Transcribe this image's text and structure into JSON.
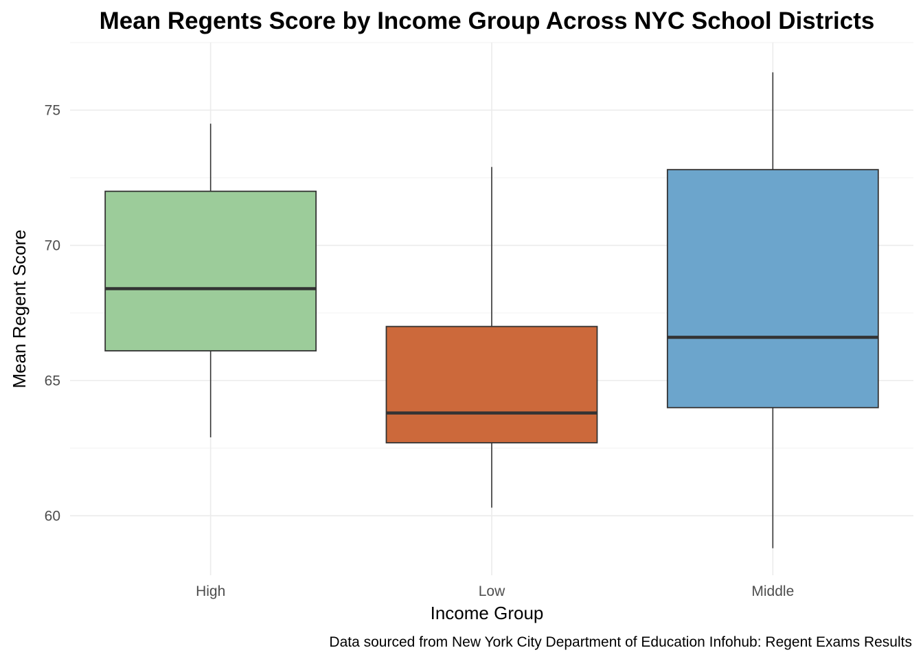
{
  "chart_data": {
    "type": "box",
    "title": "Mean Regents Score by Income Group Across NYC School Districts",
    "xlabel": "Income Group",
    "ylabel": "Mean Regent Score",
    "caption": "Data sourced from New York City Department of Education Infohub: Regent Exams Results",
    "ylim": [
      57.8,
      77.5
    ],
    "yticks": [
      60,
      65,
      70,
      75
    ],
    "ytick_labels": [
      "60",
      "65",
      "70",
      "75"
    ],
    "grid": true,
    "legend": "none",
    "categories": [
      "High",
      "Low",
      "Middle"
    ],
    "boxes": [
      {
        "category": "High",
        "whisker_low": 62.9,
        "q1": 66.1,
        "median": 68.4,
        "q3": 72.0,
        "whisker_high": 74.5,
        "color": "#9ccc9a"
      },
      {
        "category": "Low",
        "whisker_low": 60.3,
        "q1": 62.7,
        "median": 63.8,
        "q3": 67.0,
        "whisker_high": 72.9,
        "color": "#cc693b"
      },
      {
        "category": "Middle",
        "whisker_low": 58.8,
        "q1": 64.0,
        "median": 66.6,
        "q3": 72.8,
        "whisker_high": 76.4,
        "color": "#6ca5cc"
      }
    ]
  }
}
